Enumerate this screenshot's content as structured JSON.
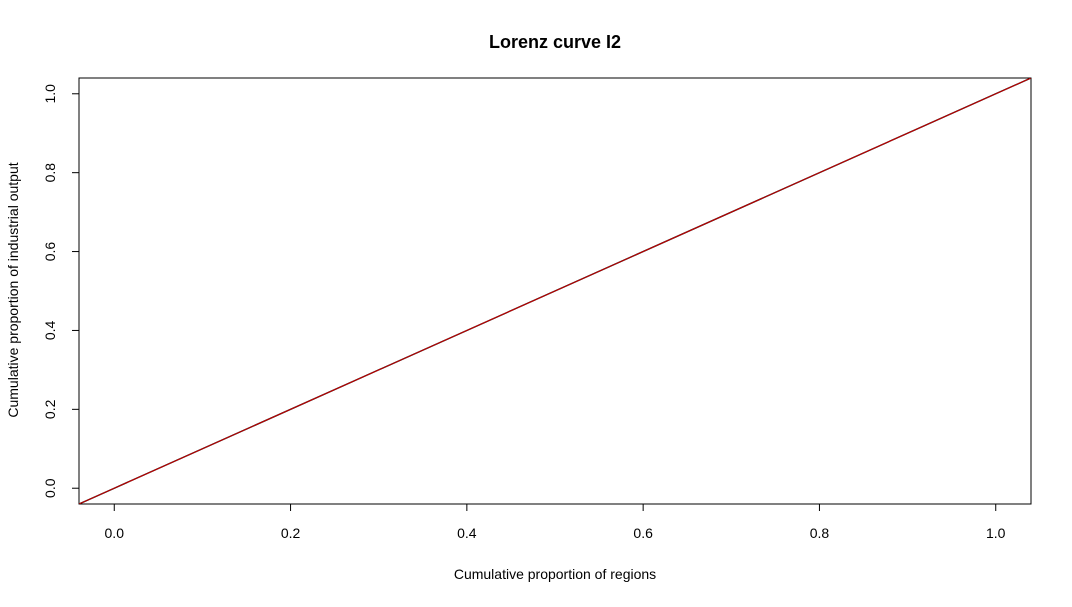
{
  "chart_data": {
    "type": "line",
    "title": "Lorenz curve I2",
    "xlabel": "Cumulative proportion of regions",
    "ylabel": "Cumulative proportion of industrial output",
    "xlim": [
      -0.04,
      1.04
    ],
    "ylim": [
      -0.04,
      1.04
    ],
    "xticks": [
      "0.0",
      "0.2",
      "0.4",
      "0.6",
      "0.8",
      "1.0"
    ],
    "yticks": [
      "0.0",
      "0.2",
      "0.4",
      "0.6",
      "0.8",
      "1.0"
    ],
    "grid": false,
    "series": [
      {
        "x": [
          0,
          1
        ],
        "y": [
          0,
          1
        ],
        "color": "#000000"
      },
      {
        "x": [
          0,
          1
        ],
        "y": [
          0,
          1
        ],
        "color": "#cc0000"
      }
    ]
  }
}
